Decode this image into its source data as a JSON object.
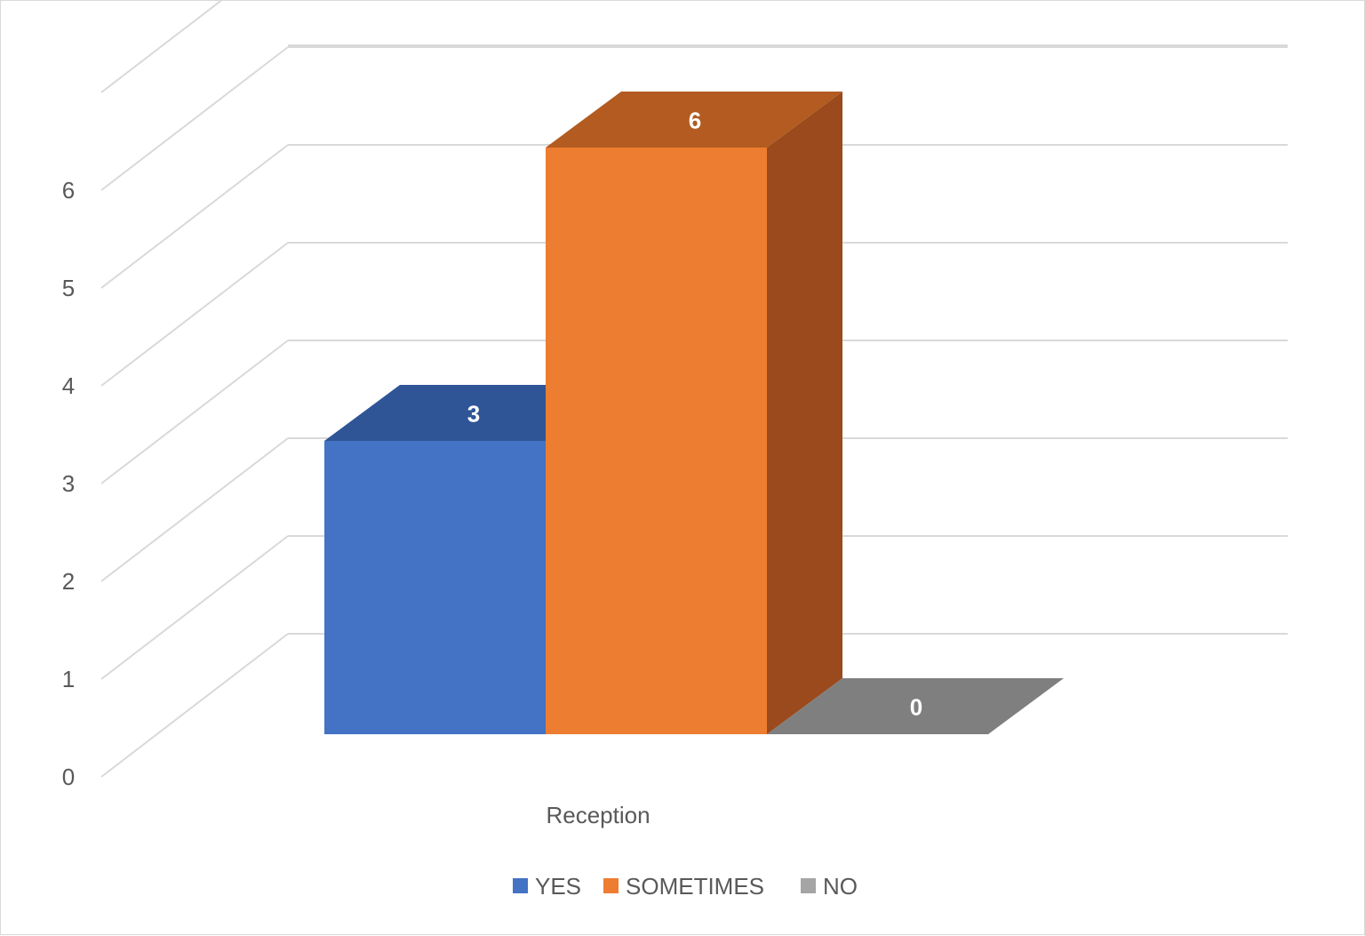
{
  "chart_data": {
    "type": "bar",
    "title": "",
    "xlabel": "",
    "ylabel": "",
    "categories": [
      "Reception"
    ],
    "series": [
      {
        "name": "YES",
        "values": [
          3
        ],
        "color": "#4472C4",
        "top_color": "#2F5597",
        "side_color": "#2E4F8F"
      },
      {
        "name": "SOMETIMES",
        "values": [
          6
        ],
        "color": "#ED7D31",
        "top_color": "#B35B20",
        "side_color": "#9A4A1C"
      },
      {
        "name": "NO",
        "values": [
          0
        ],
        "color": "#A5A5A5",
        "top_color": "#7F7F7F",
        "side_color": "#6E6E6E"
      }
    ],
    "y_ticks": [
      "0",
      "1",
      "2",
      "3",
      "4",
      "5",
      "6"
    ],
    "ylim": [
      0,
      7
    ],
    "grid": true,
    "legend_position": "bottom",
    "data_labels": true,
    "style": "3d-column"
  }
}
